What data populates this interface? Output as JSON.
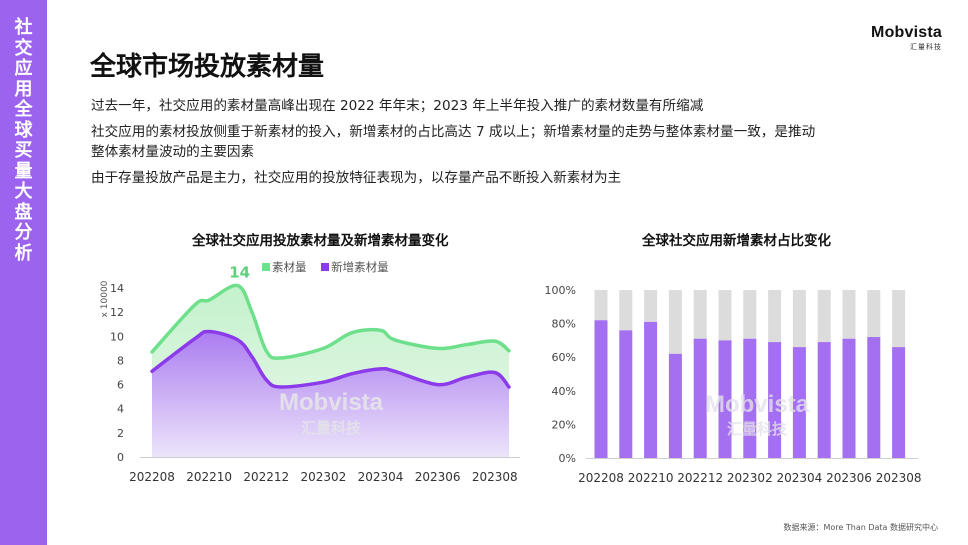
{
  "sidebar": {
    "title_chars": [
      "社",
      "交",
      "应",
      "用",
      "全",
      "球",
      "买",
      "量",
      "大",
      "盘",
      "分",
      "析"
    ]
  },
  "logo": {
    "main": "Mobvista",
    "sub": "汇量科技"
  },
  "title": "全球市场投放素材量",
  "bullets": [
    "过去一年，社交应用的素材量高峰出现在 2022 年年末；2023 年上半年投入推广的素材数量有所缩减",
    "社交应用的素材投放侧重于新素材的投入，新增素材的占比高达 7 成以上；新增素材量的走势与整体素材量一致，是推动整体素材量波动的主要因素",
    "由于存量投放产品是主力，社交应用的投放特征表现为，以存量产品不断投入新素材为主"
  ],
  "watermark": {
    "main": "Mobvista",
    "sub": "汇量科技"
  },
  "source": "数据来源：More Than Data 数据研究中心",
  "colors": {
    "accent": "#9b63ee",
    "total": "#6ee08c",
    "new": "#8b3bea",
    "rest": "#dcdcdc"
  },
  "chart_data": [
    {
      "type": "area",
      "title": "全球社交应用投放素材量及新增素材量变化",
      "ylabel": "x 10000",
      "ylim": [
        0,
        14
      ],
      "yticks": [
        "0",
        "2",
        "4",
        "6",
        "8",
        "10",
        "12",
        "14"
      ],
      "x_tick_labels": [
        "202208",
        "202210",
        "202212",
        "202302",
        "202304",
        "202306",
        "202308"
      ],
      "x": [
        0,
        1.5,
        2,
        3,
        3.5,
        4,
        4.5,
        6,
        7,
        8,
        8.5,
        10,
        11,
        12,
        12.5
      ],
      "series": [
        {
          "name": "素材量",
          "values": [
            8.7,
            12.6,
            13.0,
            14.2,
            12.0,
            8.8,
            8.2,
            9.0,
            10.3,
            10.5,
            9.7,
            9.0,
            9.3,
            9.6,
            8.8
          ]
        },
        {
          "name": "新增素材量",
          "values": [
            7.1,
            9.8,
            10.4,
            9.7,
            8.3,
            6.4,
            5.8,
            6.2,
            6.9,
            7.3,
            7.1,
            6.0,
            6.6,
            7.0,
            5.8
          ]
        }
      ],
      "annotation": {
        "text": "14",
        "x": 3,
        "y": 14.2
      }
    },
    {
      "type": "bar",
      "title": "全球社交应用新增素材占比变化",
      "ylim": [
        0,
        100
      ],
      "yticks": [
        "0%",
        "20%",
        "40%",
        "60%",
        "80%",
        "100%"
      ],
      "x_tick_labels": [
        "202208",
        "202210",
        "202212",
        "202302",
        "202304",
        "202306",
        "202308"
      ],
      "categories": [
        "202208",
        "202209",
        "202210",
        "202211",
        "202212",
        "202301",
        "202302",
        "202303",
        "202304",
        "202305",
        "202306",
        "202307",
        "202308"
      ],
      "series": [
        {
          "name": "新增素材占比",
          "values": [
            82,
            76,
            81,
            62,
            71,
            70,
            71,
            69,
            66,
            69,
            71,
            72,
            66
          ]
        }
      ]
    }
  ]
}
